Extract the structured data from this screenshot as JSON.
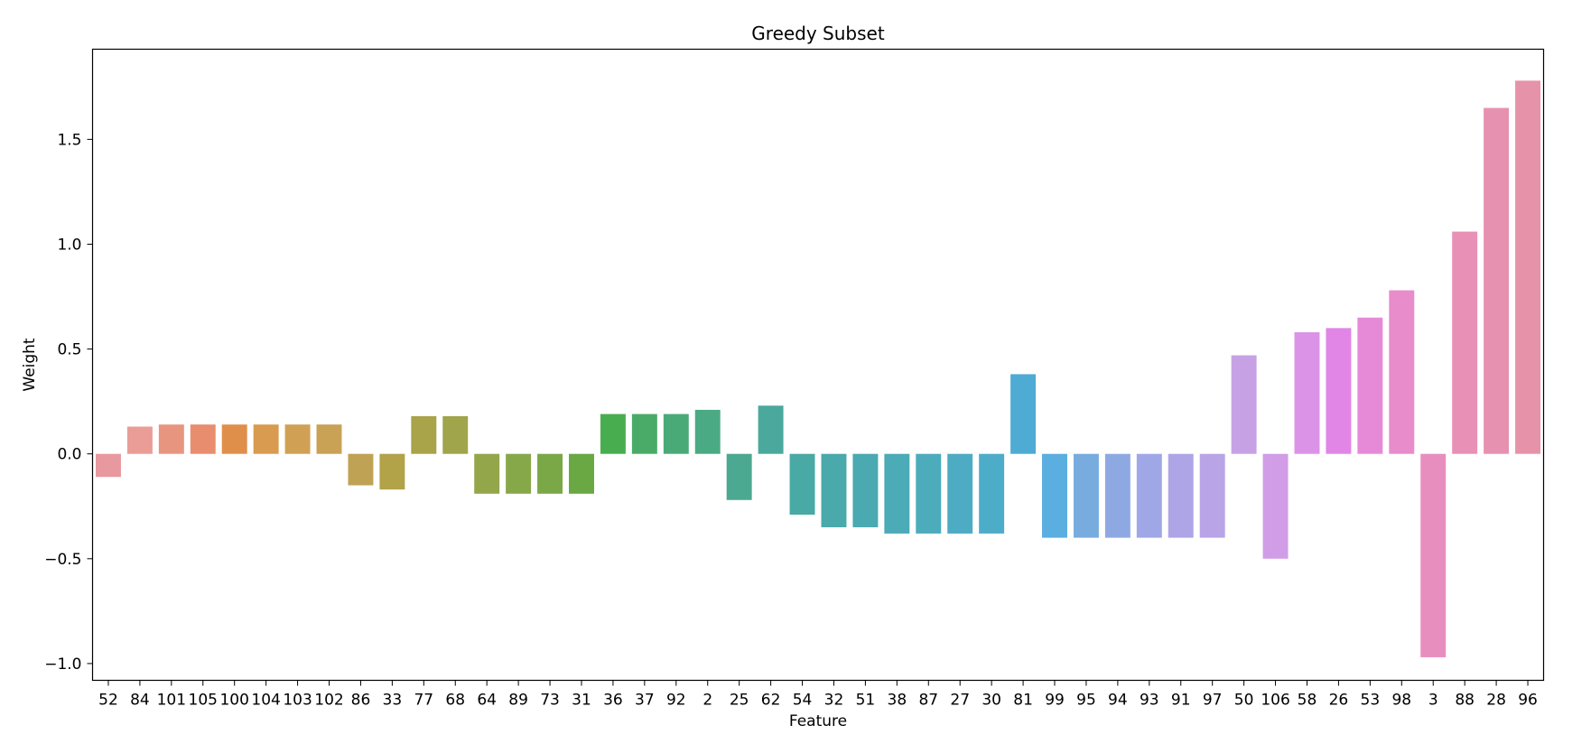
{
  "chart_data": {
    "type": "bar",
    "title": "Greedy Subset",
    "xlabel": "Feature",
    "ylabel": "Weight",
    "ylim": [
      -1.08,
      1.93
    ],
    "yticks": [
      -1.0,
      -0.5,
      0.0,
      0.5,
      1.0,
      1.5
    ],
    "ytick_labels": [
      "−1.0",
      "−0.5",
      "0.0",
      "0.5",
      "1.0",
      "1.5"
    ],
    "grid": false,
    "legend": "none",
    "categories": [
      "52",
      "84",
      "101",
      "105",
      "100",
      "104",
      "103",
      "102",
      "86",
      "33",
      "77",
      "68",
      "64",
      "89",
      "73",
      "31",
      "36",
      "37",
      "92",
      "2",
      "25",
      "62",
      "54",
      "32",
      "51",
      "38",
      "87",
      "27",
      "30",
      "81",
      "99",
      "95",
      "94",
      "93",
      "91",
      "97",
      "50",
      "106",
      "58",
      "26",
      "53",
      "98",
      "3",
      "88",
      "28",
      "96"
    ],
    "values": [
      -0.11,
      0.13,
      0.14,
      0.14,
      0.14,
      0.14,
      0.14,
      0.14,
      -0.15,
      -0.17,
      0.18,
      0.18,
      -0.19,
      -0.19,
      -0.19,
      -0.19,
      0.19,
      0.19,
      0.19,
      0.21,
      -0.22,
      0.23,
      -0.29,
      -0.35,
      -0.35,
      -0.38,
      -0.38,
      -0.38,
      -0.38,
      0.38,
      -0.4,
      -0.4,
      -0.4,
      -0.4,
      -0.4,
      -0.4,
      0.47,
      -0.5,
      0.58,
      0.6,
      0.65,
      0.78,
      -0.97,
      1.06,
      1.65,
      1.78
    ],
    "colors": [
      "#e8989f",
      "#e99d96",
      "#e8957f",
      "#e88e6e",
      "#e08f4b",
      "#d99b50",
      "#d0a154",
      "#c9a256",
      "#bfa254",
      "#b2a248",
      "#a9a349",
      "#a0a44a",
      "#94a64a",
      "#87a849",
      "#7aa847",
      "#69a842",
      "#48ad4f",
      "#4aab68",
      "#4aaa77",
      "#4aaa84",
      "#4ba891",
      "#4aa99c",
      "#49a9a4",
      "#4aa9aa",
      "#4aa9b1",
      "#4babb6",
      "#4cacbc",
      "#4dacc3",
      "#4dadc9",
      "#4eabd4",
      "#5aaee0",
      "#78acdf",
      "#8ea9e2",
      "#a0a7e6",
      "#aea5e7",
      "#b8a4e7",
      "#c6a2e5",
      "#d19de6",
      "#db93e7",
      "#e186e6",
      "#e68ad7",
      "#e88ccb",
      "#e88ebe",
      "#e890b6",
      "#e791b0",
      "#e693aa"
    ]
  }
}
